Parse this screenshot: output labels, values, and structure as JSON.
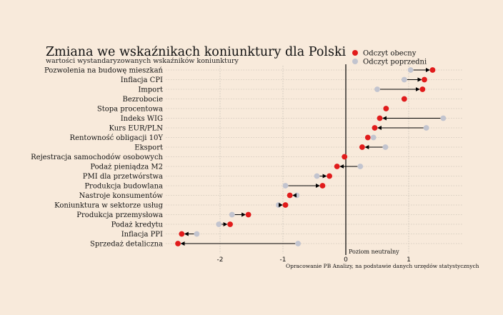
{
  "colors": {
    "background": "#f8eadb",
    "current": "#e11b1b",
    "previous": "#c2c4cf",
    "arrow": "#000000",
    "grid": "#b9b2a8",
    "zero_line": "#000000"
  },
  "chart_data": {
    "type": "dumbbell",
    "title": "Zmiana we wskaźnikach koniunktury dla Polski",
    "subtitle": "wartości wystandaryzowanych wskaźników koniunktury",
    "zero_line_label": "Poziom neutralny",
    "source": "Opracowanie PB Analizy, na podstawie danych urzędów statystycznych",
    "legend": [
      "Odczyt obecny",
      "Odczyt poprzedni"
    ],
    "legend_position": "top-right",
    "xlim": [
      -2.7,
      1.55
    ],
    "xticks": [
      -2,
      -1,
      0,
      1
    ],
    "xtick_labels": [
      "-2",
      "-1",
      "0",
      "1"
    ],
    "grid": "dotted",
    "categories": [
      "Pozwolenia na budowę mieszkań",
      "Inflacja CPI",
      "Import",
      "Bezrobocie",
      "Stopa procentowa",
      "Indeks WIG",
      "Kurs EUR/PLN",
      "Rentowność obligacji 10Y",
      "Eksport",
      "Rejestracja samochodów osobowych",
      "Podaż pieniądza M2",
      "PMI dla przetwórstwa",
      "Produkcja budowlana",
      "Nastroje konsumentów",
      "Koniunktura w sektorze usług",
      "Produkcja przemysłowa",
      "Podaż kredytu",
      "Inflacja PPI",
      "Sprzedaż detaliczna"
    ],
    "series": [
      {
        "name": "Odczyt obecny",
        "values": [
          1.38,
          1.25,
          1.22,
          0.93,
          0.64,
          0.54,
          0.46,
          0.35,
          0.26,
          -0.02,
          -0.14,
          -0.26,
          -0.37,
          -0.89,
          -0.96,
          -1.55,
          -1.84,
          -2.61,
          -2.67
        ]
      },
      {
        "name": "Odczyt poprzedni",
        "values": [
          1.03,
          0.93,
          0.5,
          0.93,
          0.64,
          1.55,
          1.28,
          0.44,
          0.63,
          -0.02,
          0.23,
          -0.46,
          -0.96,
          -0.78,
          -1.07,
          -1.81,
          -2.02,
          -2.37,
          -0.76
        ]
      }
    ]
  }
}
